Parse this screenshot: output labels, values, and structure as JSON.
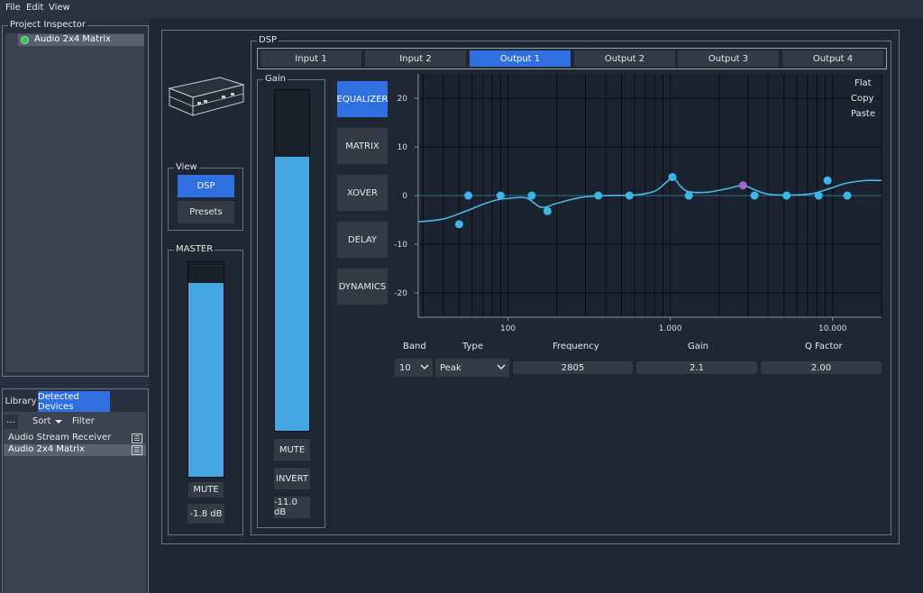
{
  "menu": {
    "file": "File",
    "edit": "Edit",
    "view": "View"
  },
  "project_inspector": {
    "title": "Project Inspector",
    "item": "Audio 2x4 Matrix",
    "status_color": "#2fc74a"
  },
  "devices_panel": {
    "tabs": [
      "Library",
      "Detected Devices"
    ],
    "toolbar": {
      "more": "...",
      "sort": "Sort",
      "filter": "Filter"
    },
    "items": [
      "Audio Stream Receiver",
      "Audio 2x4 Matrix"
    ]
  },
  "view_group": {
    "title": "View",
    "dsp": "DSP",
    "presets": "Presets"
  },
  "master": {
    "title": "MASTER",
    "mute": "MUTE",
    "level": "-1.8 dB",
    "fill": 0.905
  },
  "dsp": {
    "title": "DSP",
    "tabs": [
      "Input 1",
      "Input 2",
      "Output 1",
      "Output 2",
      "Output 3",
      "Output 4"
    ],
    "active_tab": "Output 1",
    "gain": {
      "title": "Gain",
      "mute": "MUTE",
      "invert": "INVERT",
      "level": "-11.0 dB",
      "fill": 0.805
    },
    "modes": [
      "EQUALIZER",
      "MATRIX",
      "XOVER",
      "DELAY",
      "DYNAMICS"
    ],
    "active_mode": "EQUALIZER",
    "eq_menu": {
      "flat": "Flat",
      "copy": "Copy",
      "paste": "Paste"
    },
    "eq_table": {
      "headers": {
        "band": "Band",
        "type": "Type",
        "frequency": "Frequency",
        "gain": "Gain",
        "q": "Q Factor"
      },
      "band": "10",
      "type": "Peak",
      "frequency": "2805",
      "gain": "2.1",
      "q": "2.00"
    }
  },
  "chart_data": {
    "type": "line",
    "x_scale": "log",
    "xlim": [
      28,
      20000
    ],
    "ylim": [
      -25,
      25
    ],
    "yticks": [
      20,
      10,
      0,
      -10,
      -20
    ],
    "xtick_labels": [
      {
        "v": 100,
        "label": "100"
      },
      {
        "v": 1000,
        "label": "1.000"
      },
      {
        "v": 10000,
        "label": "10.000"
      }
    ],
    "curve": [
      [
        28,
        -5.4
      ],
      [
        40,
        -4.8
      ],
      [
        55,
        -3.2
      ],
      [
        70,
        -1.8
      ],
      [
        85,
        -0.9
      ],
      [
        100,
        -0.6
      ],
      [
        130,
        -0.5
      ],
      [
        160,
        -2.4
      ],
      [
        200,
        -1.6
      ],
      [
        280,
        -0.4
      ],
      [
        400,
        0
      ],
      [
        600,
        0.1
      ],
      [
        800,
        0.9
      ],
      [
        950,
        2.8
      ],
      [
        1040,
        3.8
      ],
      [
        1150,
        2.0
      ],
      [
        1300,
        0.8
      ],
      [
        1700,
        0.7
      ],
      [
        2300,
        1.5
      ],
      [
        2805,
        2.1
      ],
      [
        3300,
        1.2
      ],
      [
        4000,
        0.3
      ],
      [
        5500,
        0.1
      ],
      [
        7500,
        0.4
      ],
      [
        9500,
        1.4
      ],
      [
        12000,
        2.5
      ],
      [
        16000,
        3.1
      ],
      [
        20000,
        3.1
      ]
    ],
    "band_points": [
      [
        50,
        -5.9
      ],
      [
        57,
        0
      ],
      [
        90,
        0
      ],
      [
        140,
        0
      ],
      [
        175,
        -3.2
      ],
      [
        360,
        0
      ],
      [
        560,
        0
      ],
      [
        1030,
        3.8
      ],
      [
        1300,
        0
      ],
      [
        2805,
        2.1
      ],
      [
        3300,
        0
      ],
      [
        5200,
        0
      ],
      [
        8200,
        0
      ],
      [
        9300,
        3.1
      ],
      [
        12300,
        0
      ]
    ],
    "selected_band_index": 9,
    "colors": {
      "curve": "#46b9e6",
      "point": "#3cb8e8",
      "selected": "#a068c8",
      "grid": "#0a0e13",
      "zero": "#3a6c88",
      "bg": "#1b2330"
    }
  }
}
